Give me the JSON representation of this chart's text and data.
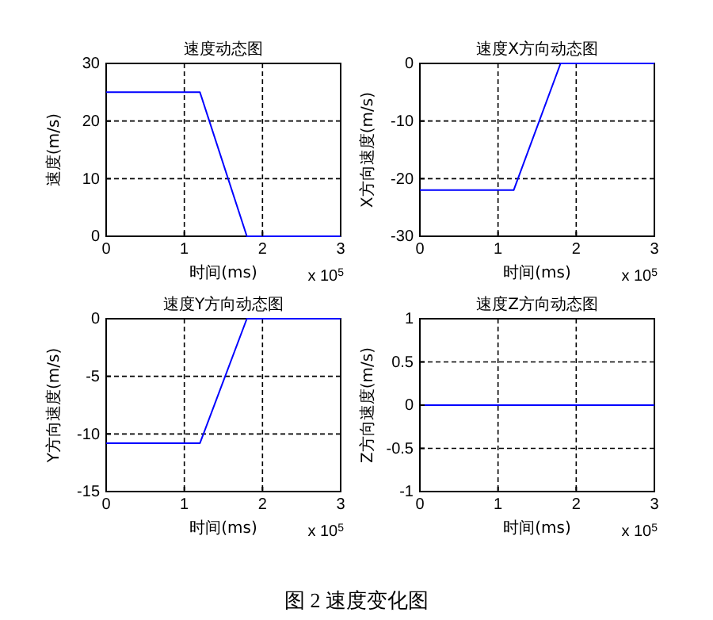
{
  "chart_data": [
    {
      "type": "line",
      "title": "速度动态图",
      "xlabel": "时间(ms)",
      "ylabel": "速度(m/s)",
      "x": [
        0,
        1.2,
        1.8,
        3
      ],
      "xlim": [
        0,
        3
      ],
      "xticks": [
        0,
        1,
        2,
        3
      ],
      "ylim": [
        0,
        30
      ],
      "yticks": [
        0,
        10,
        20,
        30
      ],
      "grid": true,
      "series": [
        {
          "color": "#0000ff",
          "values": [
            25,
            25,
            0,
            0
          ]
        }
      ],
      "annotations": [
        "x 10$^{5}$",
        "图 2 速度变化图"
      ]
    },
    {
      "type": "line",
      "title": "速度X方向动态图",
      "xlabel": "时间(ms)",
      "ylabel": "X方向速度(m/s)",
      "x": [
        0,
        1.2,
        1.8,
        3
      ],
      "xlim": [
        0,
        3
      ],
      "xticks": [
        0,
        1,
        2,
        3
      ],
      "ylim": [
        -30,
        0
      ],
      "yticks": [
        -30,
        -20,
        -10,
        0
      ],
      "grid": true,
      "series": [
        {
          "color": "#0000ff",
          "values": [
            -22,
            -22,
            0,
            0
          ]
        }
      ],
      "annotations": [
        "x 10$^{5}$"
      ]
    },
    {
      "type": "line",
      "title": "速度Y方向动态图",
      "xlabel": "时间(ms)",
      "ylabel": "Y方向速度(m/s)",
      "x": [
        0,
        1.2,
        1.8,
        3
      ],
      "xlim": [
        0,
        3
      ],
      "xticks": [
        0,
        1,
        2,
        3
      ],
      "ylim": [
        -15,
        0
      ],
      "yticks": [
        -15,
        -10,
        -5,
        0
      ],
      "grid": true,
      "series": [
        {
          "color": "#0000ff",
          "values": [
            -10.8,
            -10.8,
            0,
            0
          ]
        }
      ],
      "annotations": [
        "x 10$^{5}$"
      ]
    },
    {
      "type": "line",
      "title": "速度Z方向动态图",
      "xlabel": "时间(ms)",
      "ylabel": "Z方向速度(m/s)",
      "x": [
        0,
        3
      ],
      "xlim": [
        0,
        3
      ],
      "xticks": [
        0,
        1,
        2,
        3
      ],
      "ylim": [
        -1,
        1
      ],
      "yticks": [
        -1,
        -0.5,
        0,
        0.5,
        1
      ],
      "grid": true,
      "series": [
        {
          "color": "#0000ff",
          "values": [
            0,
            0
          ]
        }
      ],
      "annotations": [
        "x 10$^{5}$"
      ]
    }
  ]
}
